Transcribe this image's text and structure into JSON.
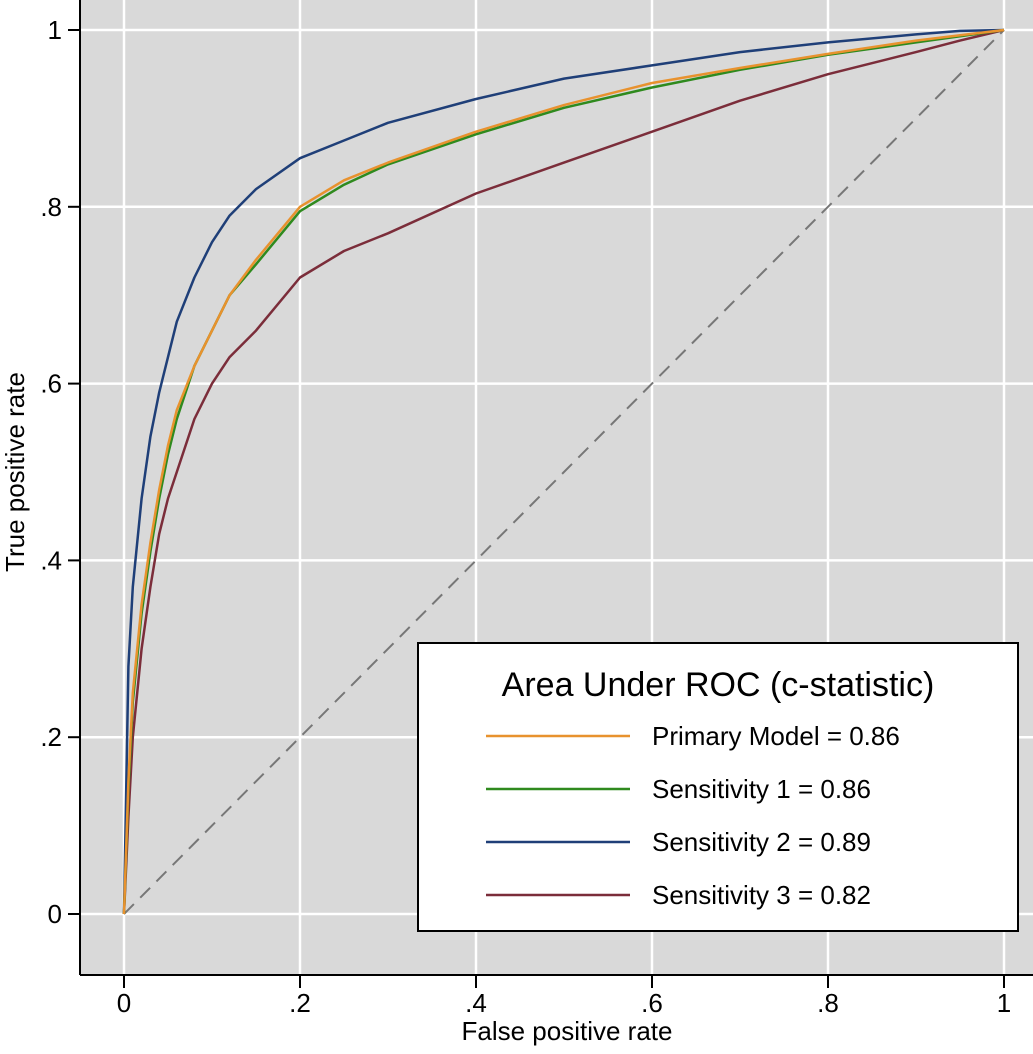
{
  "chart_data": {
    "type": "line",
    "xlabel": "False positive rate",
    "ylabel": "True positive rate",
    "xlim": [
      0,
      1
    ],
    "ylim": [
      0,
      1
    ],
    "x_ticks": [
      0,
      0.2,
      0.4,
      0.6,
      0.8,
      1
    ],
    "x_tick_labels": [
      "0",
      ".2",
      ".4",
      ".6",
      ".8",
      "1"
    ],
    "y_ticks": [
      0,
      0.2,
      0.4,
      0.6,
      0.8,
      1
    ],
    "y_tick_labels": [
      "0",
      ".2",
      ".4",
      ".6",
      ".8",
      "1"
    ],
    "grid": true,
    "background_color": "#d9d9d9",
    "legend": {
      "title": "Area Under ROC (c-statistic)",
      "position": "bottom-right",
      "entries": [
        "Primary Model = 0.86",
        "Sensitivity 1 = 0.86",
        "Sensitivity 2 = 0.89",
        "Sensitivity 3 = 0.82"
      ]
    },
    "reference_line": {
      "x": [
        0,
        1
      ],
      "y": [
        0,
        1
      ],
      "style": "dashed",
      "color": "#777777"
    },
    "series": [
      {
        "color": "#e8922e",
        "x": [
          0,
          0.005,
          0.01,
          0.02,
          0.03,
          0.04,
          0.05,
          0.06,
          0.08,
          0.1,
          0.12,
          0.15,
          0.2,
          0.25,
          0.3,
          0.4,
          0.5,
          0.6,
          0.7,
          0.8,
          0.9,
          0.95,
          1
        ],
        "y": [
          0,
          0.15,
          0.25,
          0.35,
          0.42,
          0.48,
          0.53,
          0.57,
          0.62,
          0.66,
          0.7,
          0.74,
          0.8,
          0.83,
          0.85,
          0.885,
          0.915,
          0.94,
          0.957,
          0.973,
          0.988,
          0.994,
          1
        ]
      },
      {
        "color": "#2f8a1e",
        "x": [
          0,
          0.005,
          0.01,
          0.02,
          0.03,
          0.04,
          0.05,
          0.06,
          0.08,
          0.1,
          0.12,
          0.15,
          0.2,
          0.25,
          0.3,
          0.4,
          0.5,
          0.6,
          0.7,
          0.8,
          0.9,
          0.95,
          1
        ],
        "y": [
          0,
          0.14,
          0.24,
          0.34,
          0.41,
          0.47,
          0.52,
          0.56,
          0.62,
          0.66,
          0.7,
          0.735,
          0.795,
          0.825,
          0.848,
          0.882,
          0.912,
          0.935,
          0.955,
          0.972,
          0.986,
          0.993,
          1
        ]
      },
      {
        "color": "#1f3f78",
        "x": [
          0,
          0.005,
          0.01,
          0.02,
          0.03,
          0.04,
          0.05,
          0.06,
          0.08,
          0.1,
          0.12,
          0.15,
          0.2,
          0.25,
          0.3,
          0.4,
          0.5,
          0.6,
          0.7,
          0.8,
          0.9,
          0.95,
          1
        ],
        "y": [
          0,
          0.28,
          0.37,
          0.47,
          0.54,
          0.59,
          0.63,
          0.67,
          0.72,
          0.76,
          0.79,
          0.82,
          0.855,
          0.875,
          0.895,
          0.922,
          0.945,
          0.96,
          0.975,
          0.986,
          0.995,
          0.999,
          1
        ]
      },
      {
        "color": "#7b2d3a",
        "x": [
          0,
          0.005,
          0.01,
          0.02,
          0.03,
          0.04,
          0.05,
          0.06,
          0.08,
          0.1,
          0.12,
          0.15,
          0.2,
          0.25,
          0.3,
          0.4,
          0.5,
          0.6,
          0.7,
          0.8,
          0.9,
          0.95,
          1
        ],
        "y": [
          0,
          0.11,
          0.2,
          0.3,
          0.37,
          0.43,
          0.47,
          0.5,
          0.56,
          0.6,
          0.63,
          0.66,
          0.72,
          0.75,
          0.77,
          0.815,
          0.85,
          0.885,
          0.92,
          0.95,
          0.975,
          0.988,
          1
        ]
      }
    ]
  }
}
